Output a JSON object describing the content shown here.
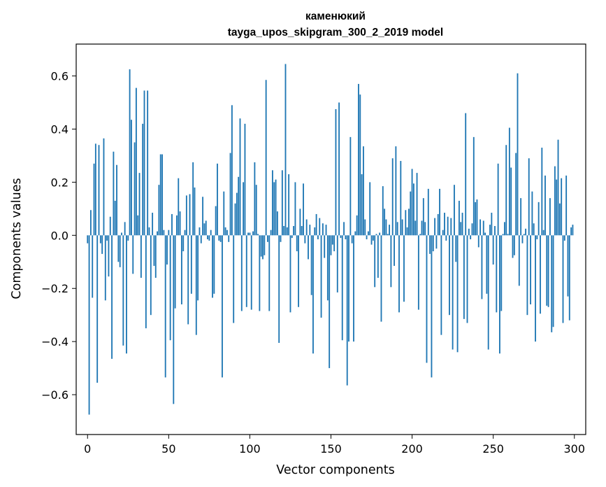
{
  "chart_data": {
    "type": "bar",
    "title": "каменюкий",
    "subtitle": "tayga_upos_skipgram_300_2_2019 model",
    "xlabel": "Vector components",
    "ylabel": "Components values",
    "xlim": [
      -7,
      307
    ],
    "ylim": [
      -0.75,
      0.72
    ],
    "xticks": [
      0,
      50,
      100,
      150,
      200,
      250,
      300
    ],
    "yticks": [
      -0.6,
      -0.4,
      -0.2,
      0.0,
      0.2,
      0.4,
      0.6
    ],
    "xtick_labels": [
      "0",
      "50",
      "100",
      "150",
      "200",
      "250",
      "300"
    ],
    "ytick_labels": [
      "−0.6",
      "−0.4",
      "−0.2",
      "0.0",
      "0.2",
      "0.4",
      "0.6"
    ],
    "bar_color": "#1f77b4",
    "grid": false,
    "series": [
      {
        "values": [
          -0.03,
          -0.675,
          0.095,
          -0.235,
          0.27,
          0.345,
          -0.555,
          0.34,
          -0.03,
          -0.07,
          0.365,
          -0.245,
          -0.02,
          -0.155,
          0.07,
          -0.465,
          0.315,
          0.13,
          0.265,
          -0.1,
          -0.12,
          0.01,
          -0.415,
          0.05,
          -0.445,
          -0.02,
          0.625,
          0.435,
          -0.145,
          0.35,
          0.555,
          0.075,
          0.235,
          -0.16,
          0.42,
          0.545,
          -0.35,
          0.545,
          0.03,
          -0.3,
          0.085,
          -0.115,
          -0.16,
          0.015,
          0.19,
          0.305,
          0.305,
          0.02,
          -0.535,
          -0.11,
          0.02,
          -0.395,
          0.08,
          -0.635,
          -0.275,
          0.075,
          0.215,
          0.09,
          -0.26,
          -0.06,
          0.02,
          0.15,
          -0.335,
          0.155,
          -0.22,
          0.275,
          0.18,
          -0.375,
          -0.245,
          0.03,
          -0.03,
          0.145,
          0.045,
          0.055,
          -0.015,
          -0.02,
          0.02,
          -0.235,
          -0.22,
          0.11,
          0.27,
          -0.02,
          -0.025,
          -0.535,
          0.165,
          0.03,
          0.02,
          -0.025,
          0.31,
          0.49,
          -0.33,
          0.12,
          0.16,
          0.22,
          0.44,
          -0.285,
          0.2,
          0.42,
          -0.27,
          0.01,
          0.01,
          -0.28,
          0.015,
          0.275,
          0.19,
          0.005,
          -0.285,
          -0.08,
          -0.09,
          -0.075,
          0.585,
          -0.025,
          -0.285,
          0.02,
          0.245,
          0.2,
          0.21,
          0.09,
          -0.405,
          -0.025,
          0.245,
          0.035,
          0.645,
          0.03,
          0.23,
          -0.29,
          -0.01,
          0.035,
          0.2,
          -0.06,
          -0.27,
          0.1,
          0.035,
          0.195,
          -0.03,
          0.06,
          -0.09,
          0.04,
          -0.225,
          -0.445,
          0.03,
          0.08,
          -0.015,
          0.065,
          -0.31,
          0.045,
          -0.085,
          0.04,
          -0.245,
          -0.5,
          -0.075,
          -0.035,
          -0.06,
          0.475,
          -0.215,
          0.5,
          -0.01,
          -0.395,
          0.05,
          -0.015,
          -0.565,
          -0.4,
          0.37,
          -0.03,
          -0.4,
          0.015,
          0.075,
          0.57,
          0.53,
          0.23,
          0.335,
          0.06,
          -0.015,
          0.015,
          0.2,
          -0.035,
          -0.02,
          -0.195,
          0.005,
          -0.16,
          0.01,
          -0.325,
          0.185,
          0.1,
          0.06,
          0.005,
          0.04,
          -0.195,
          0.29,
          -0.115,
          0.335,
          0.05,
          -0.29,
          0.28,
          0.06,
          -0.25,
          0.095,
          0.03,
          0.1,
          0.165,
          0.25,
          0.195,
          0.055,
          0.235,
          -0.28,
          0.005,
          0.055,
          0.14,
          0.05,
          -0.48,
          0.175,
          -0.07,
          -0.535,
          -0.06,
          0.065,
          -0.05,
          0.08,
          0.175,
          -0.375,
          0.02,
          0.085,
          -0.02,
          0.07,
          -0.3,
          0.065,
          -0.43,
          0.19,
          -0.1,
          -0.44,
          0.13,
          0.05,
          0.085,
          -0.315,
          0.46,
          -0.33,
          0.025,
          -0.015,
          0.045,
          0.37,
          0.125,
          0.135,
          -0.045,
          0.06,
          -0.24,
          0.055,
          0.01,
          -0.22,
          -0.43,
          0.04,
          0.085,
          -0.11,
          0.035,
          -0.29,
          0.27,
          -0.445,
          -0.285,
          0.005,
          0.05,
          0.34,
          0.005,
          0.405,
          0.255,
          -0.085,
          -0.075,
          0.31,
          0.61,
          -0.19,
          0.14,
          -0.03,
          0.005,
          0.025,
          -0.3,
          0.29,
          -0.26,
          0.165,
          0.045,
          -0.4,
          -0.015,
          0.125,
          -0.295,
          0.33,
          0.02,
          0.225,
          -0.265,
          -0.27,
          0.14,
          -0.365,
          -0.345,
          0.26,
          0.21,
          0.36,
          0.12,
          0.215,
          -0.33,
          -0.02,
          0.225,
          -0.23,
          -0.32,
          0.03,
          0.04
        ]
      }
    ]
  }
}
